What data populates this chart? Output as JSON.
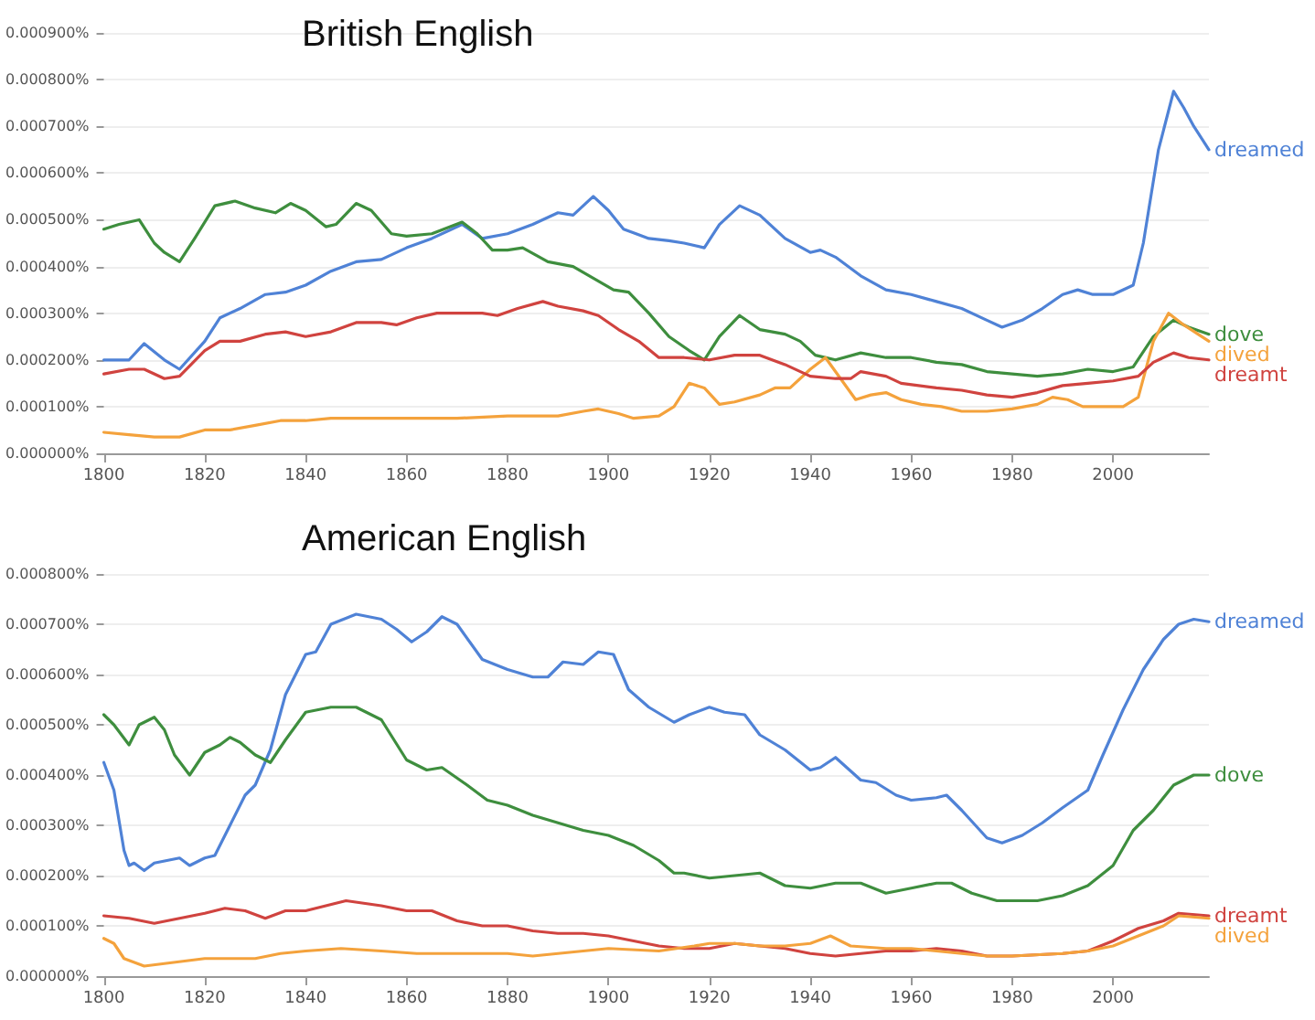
{
  "chart_data": [
    {
      "type": "line",
      "title": "British English",
      "xlim": [
        1800,
        2019
      ],
      "xticks": [
        1800,
        1820,
        1840,
        1860,
        1880,
        1900,
        1920,
        1940,
        1960,
        1980,
        2000
      ],
      "ylim": [
        0,
        0.0009
      ],
      "yticks": [
        {
          "value": 0,
          "label": "0.000000%"
        },
        {
          "value": 0.0001,
          "label": "0.000100%"
        },
        {
          "value": 0.0002,
          "label": "0.000200%"
        },
        {
          "value": 0.0003,
          "label": "0.000300%"
        },
        {
          "value": 0.0004,
          "label": "0.000400%"
        },
        {
          "value": 0.0005,
          "label": "0.000500%"
        },
        {
          "value": 0.0006,
          "label": "0.000600%"
        },
        {
          "value": 0.0007,
          "label": "0.000700%"
        },
        {
          "value": 0.0008,
          "label": "0.000800%"
        },
        {
          "value": 0.0009,
          "label": "0.000900%"
        }
      ],
      "grid": "y",
      "marker": "none",
      "series": [
        {
          "name": "dreamed",
          "color": "#4f82d6",
          "x": [
            1800,
            1805,
            1808,
            1812,
            1815,
            1820,
            1823,
            1827,
            1832,
            1836,
            1840,
            1845,
            1850,
            1855,
            1860,
            1865,
            1871,
            1875,
            1880,
            1885,
            1890,
            1893,
            1897,
            1900,
            1903,
            1908,
            1912,
            1915,
            1919,
            1922,
            1926,
            1930,
            1935,
            1940,
            1942,
            1945,
            1950,
            1955,
            1960,
            1965,
            1970,
            1975,
            1978,
            1982,
            1986,
            1990,
            1993,
            1996,
            2000,
            2004,
            2006,
            2009,
            2012,
            2014,
            2016,
            2019
          ],
          "values": [
            0.0002,
            0.0002,
            0.000235,
            0.0002,
            0.00018,
            0.00024,
            0.00029,
            0.00031,
            0.00034,
            0.000345,
            0.00036,
            0.00039,
            0.00041,
            0.000415,
            0.00044,
            0.00046,
            0.00049,
            0.00046,
            0.00047,
            0.00049,
            0.000515,
            0.00051,
            0.00055,
            0.00052,
            0.00048,
            0.00046,
            0.000455,
            0.00045,
            0.00044,
            0.00049,
            0.00053,
            0.00051,
            0.00046,
            0.00043,
            0.000435,
            0.00042,
            0.00038,
            0.00035,
            0.00034,
            0.000325,
            0.00031,
            0.000285,
            0.00027,
            0.000285,
            0.00031,
            0.00034,
            0.00035,
            0.00034,
            0.00034,
            0.00036,
            0.00045,
            0.00065,
            0.000775,
            0.00074,
            0.0007,
            0.00065
          ]
        },
        {
          "name": "dove",
          "color": "#3e8e3e",
          "x": [
            1800,
            1803,
            1807,
            1810,
            1812,
            1815,
            1818,
            1822,
            1826,
            1830,
            1834,
            1837,
            1840,
            1844,
            1846,
            1850,
            1853,
            1857,
            1860,
            1865,
            1871,
            1874,
            1877,
            1880,
            1883,
            1888,
            1893,
            1897,
            1901,
            1904,
            1908,
            1912,
            1916,
            1919,
            1922,
            1926,
            1930,
            1935,
            1938,
            1941,
            1945,
            1950,
            1955,
            1960,
            1965,
            1970,
            1975,
            1980,
            1985,
            1990,
            1995,
            2000,
            2004,
            2008,
            2012,
            2015,
            2019
          ],
          "values": [
            0.00048,
            0.00049,
            0.0005,
            0.00045,
            0.00043,
            0.00041,
            0.00046,
            0.00053,
            0.00054,
            0.000525,
            0.000515,
            0.000535,
            0.00052,
            0.000485,
            0.00049,
            0.000535,
            0.00052,
            0.00047,
            0.000465,
            0.00047,
            0.000495,
            0.00047,
            0.000435,
            0.000435,
            0.00044,
            0.00041,
            0.0004,
            0.000375,
            0.00035,
            0.000345,
            0.0003,
            0.00025,
            0.00022,
            0.0002,
            0.00025,
            0.000295,
            0.000265,
            0.000255,
            0.00024,
            0.00021,
            0.0002,
            0.000215,
            0.000205,
            0.000205,
            0.000195,
            0.00019,
            0.000175,
            0.00017,
            0.000165,
            0.00017,
            0.00018,
            0.000175,
            0.000185,
            0.00025,
            0.000285,
            0.00027,
            0.000255
          ]
        },
        {
          "name": "dived",
          "color": "#f4a23c",
          "x": [
            1800,
            1805,
            1810,
            1815,
            1820,
            1825,
            1830,
            1835,
            1840,
            1845,
            1850,
            1860,
            1870,
            1880,
            1890,
            1895,
            1898,
            1902,
            1905,
            1910,
            1913,
            1916,
            1919,
            1922,
            1925,
            1930,
            1933,
            1936,
            1940,
            1943,
            1946,
            1949,
            1952,
            1955,
            1958,
            1962,
            1966,
            1970,
            1975,
            1980,
            1985,
            1988,
            1991,
            1994,
            1998,
            2002,
            2005,
            2008,
            2011,
            2014,
            2019
          ],
          "values": [
            4.5e-05,
            4e-05,
            3.5e-05,
            3.5e-05,
            5e-05,
            5e-05,
            6e-05,
            7e-05,
            7e-05,
            7.5e-05,
            7.5e-05,
            7.5e-05,
            7.5e-05,
            8e-05,
            8e-05,
            9e-05,
            9.5e-05,
            8.5e-05,
            7.5e-05,
            8e-05,
            0.0001,
            0.00015,
            0.00014,
            0.000105,
            0.00011,
            0.000125,
            0.00014,
            0.00014,
            0.00018,
            0.000205,
            0.00016,
            0.000115,
            0.000125,
            0.00013,
            0.000115,
            0.000105,
            0.0001,
            9e-05,
            9e-05,
            9.5e-05,
            0.000105,
            0.00012,
            0.000115,
            0.0001,
            0.0001,
            0.0001,
            0.00012,
            0.00024,
            0.0003,
            0.000275,
            0.00024
          ]
        },
        {
          "name": "dreamt",
          "color": "#d0433f",
          "x": [
            1800,
            1805,
            1808,
            1812,
            1815,
            1820,
            1823,
            1827,
            1832,
            1836,
            1840,
            1845,
            1850,
            1855,
            1858,
            1862,
            1866,
            1870,
            1875,
            1878,
            1882,
            1887,
            1890,
            1895,
            1898,
            1902,
            1906,
            1910,
            1915,
            1920,
            1925,
            1930,
            1935,
            1940,
            1945,
            1948,
            1950,
            1955,
            1958,
            1965,
            1970,
            1975,
            1980,
            1985,
            1990,
            1995,
            2000,
            2005,
            2008,
            2012,
            2015,
            2019
          ],
          "values": [
            0.00017,
            0.00018,
            0.00018,
            0.00016,
            0.000165,
            0.00022,
            0.00024,
            0.00024,
            0.000255,
            0.00026,
            0.00025,
            0.00026,
            0.00028,
            0.00028,
            0.000275,
            0.00029,
            0.0003,
            0.0003,
            0.0003,
            0.000295,
            0.00031,
            0.000325,
            0.000315,
            0.000305,
            0.000295,
            0.000265,
            0.00024,
            0.000205,
            0.000205,
            0.0002,
            0.00021,
            0.00021,
            0.00019,
            0.000165,
            0.00016,
            0.00016,
            0.000175,
            0.000165,
            0.00015,
            0.00014,
            0.000135,
            0.000125,
            0.00012,
            0.00013,
            0.000145,
            0.00015,
            0.000155,
            0.000165,
            0.000195,
            0.000215,
            0.000205,
            0.0002
          ]
        }
      ]
    },
    {
      "type": "line",
      "title": "American English",
      "xlim": [
        1800,
        2019
      ],
      "xticks": [
        1800,
        1820,
        1840,
        1860,
        1880,
        1900,
        1920,
        1940,
        1960,
        1980,
        2000
      ],
      "ylim": [
        0,
        0.0008
      ],
      "yticks": [
        {
          "value": 0,
          "label": "0.000000%"
        },
        {
          "value": 0.0001,
          "label": "0.000100%"
        },
        {
          "value": 0.0002,
          "label": "0.000200%"
        },
        {
          "value": 0.0003,
          "label": "0.000300%"
        },
        {
          "value": 0.0004,
          "label": "0.000400%"
        },
        {
          "value": 0.0005,
          "label": "0.000500%"
        },
        {
          "value": 0.0006,
          "label": "0.000600%"
        },
        {
          "value": 0.0007,
          "label": "0.000700%"
        },
        {
          "value": 0.0008,
          "label": "0.000800%"
        }
      ],
      "grid": "y",
      "marker": "none",
      "series": [
        {
          "name": "dreamed",
          "color": "#4f82d6",
          "x": [
            1800,
            1802,
            1804,
            1805,
            1806,
            1808,
            1810,
            1815,
            1817,
            1820,
            1822,
            1825,
            1828,
            1830,
            1833,
            1836,
            1840,
            1842,
            1845,
            1850,
            1855,
            1858,
            1861,
            1864,
            1867,
            1870,
            1875,
            1880,
            1885,
            1888,
            1891,
            1895,
            1898,
            1901,
            1904,
            1908,
            1913,
            1916,
            1920,
            1923,
            1927,
            1930,
            1935,
            1940,
            1942,
            1945,
            1950,
            1953,
            1957,
            1960,
            1965,
            1967,
            1970,
            1975,
            1978,
            1982,
            1986,
            1990,
            1995,
            1998,
            2002,
            2006,
            2010,
            2013,
            2016,
            2019
          ],
          "values": [
            0.000425,
            0.00037,
            0.00025,
            0.00022,
            0.000225,
            0.00021,
            0.000225,
            0.000235,
            0.00022,
            0.000235,
            0.00024,
            0.0003,
            0.00036,
            0.00038,
            0.00045,
            0.00056,
            0.00064,
            0.000645,
            0.0007,
            0.00072,
            0.00071,
            0.00069,
            0.000665,
            0.000685,
            0.000715,
            0.0007,
            0.00063,
            0.00061,
            0.000595,
            0.000595,
            0.000625,
            0.00062,
            0.000645,
            0.00064,
            0.00057,
            0.000535,
            0.000505,
            0.00052,
            0.000535,
            0.000525,
            0.00052,
            0.00048,
            0.00045,
            0.00041,
            0.000415,
            0.000435,
            0.00039,
            0.000385,
            0.00036,
            0.00035,
            0.000355,
            0.00036,
            0.00033,
            0.000275,
            0.000265,
            0.00028,
            0.000305,
            0.000335,
            0.00037,
            0.00044,
            0.00053,
            0.00061,
            0.00067,
            0.0007,
            0.00071,
            0.000705
          ]
        },
        {
          "name": "dove",
          "color": "#3e8e3e",
          "x": [
            1800,
            1802,
            1805,
            1807,
            1810,
            1812,
            1814,
            1817,
            1820,
            1823,
            1825,
            1827,
            1830,
            1833,
            1836,
            1840,
            1845,
            1850,
            1855,
            1860,
            1864,
            1867,
            1872,
            1876,
            1880,
            1885,
            1890,
            1895,
            1900,
            1905,
            1910,
            1913,
            1915,
            1920,
            1925,
            1930,
            1935,
            1940,
            1945,
            1950,
            1955,
            1960,
            1965,
            1968,
            1972,
            1977,
            1985,
            1990,
            1995,
            2000,
            2004,
            2008,
            2012,
            2016,
            2019
          ],
          "values": [
            0.00052,
            0.0005,
            0.00046,
            0.0005,
            0.000515,
            0.00049,
            0.00044,
            0.0004,
            0.000445,
            0.00046,
            0.000475,
            0.000465,
            0.00044,
            0.000425,
            0.00047,
            0.000525,
            0.000535,
            0.000535,
            0.00051,
            0.00043,
            0.00041,
            0.000415,
            0.00038,
            0.00035,
            0.00034,
            0.00032,
            0.000305,
            0.00029,
            0.00028,
            0.00026,
            0.00023,
            0.000205,
            0.000205,
            0.000195,
            0.0002,
            0.000205,
            0.00018,
            0.000175,
            0.000185,
            0.000185,
            0.000165,
            0.000175,
            0.000185,
            0.000185,
            0.000165,
            0.00015,
            0.00015,
            0.00016,
            0.00018,
            0.00022,
            0.00029,
            0.00033,
            0.00038,
            0.0004,
            0.0004
          ]
        },
        {
          "name": "dreamt",
          "color": "#d0433f",
          "x": [
            1800,
            1805,
            1810,
            1815,
            1820,
            1824,
            1828,
            1832,
            1836,
            1840,
            1848,
            1855,
            1860,
            1865,
            1870,
            1875,
            1880,
            1885,
            1890,
            1895,
            1900,
            1905,
            1910,
            1915,
            1920,
            1925,
            1930,
            1935,
            1940,
            1945,
            1950,
            1955,
            1960,
            1965,
            1970,
            1975,
            1980,
            1990,
            1995,
            2000,
            2005,
            2010,
            2013,
            2019
          ],
          "values": [
            0.00012,
            0.000115,
            0.000105,
            0.000115,
            0.000125,
            0.000135,
            0.00013,
            0.000115,
            0.00013,
            0.00013,
            0.00015,
            0.00014,
            0.00013,
            0.00013,
            0.00011,
            0.0001,
            0.0001,
            9e-05,
            8.5e-05,
            8.5e-05,
            8e-05,
            7e-05,
            6e-05,
            5.5e-05,
            5.5e-05,
            6.5e-05,
            6e-05,
            5.5e-05,
            4.5e-05,
            4e-05,
            4.5e-05,
            5e-05,
            5e-05,
            5.5e-05,
            5e-05,
            4e-05,
            4e-05,
            4.5e-05,
            5e-05,
            7e-05,
            9.5e-05,
            0.00011,
            0.000125,
            0.00012
          ]
        },
        {
          "name": "dived",
          "color": "#f4a23c",
          "x": [
            1800,
            1802,
            1804,
            1808,
            1812,
            1816,
            1820,
            1830,
            1835,
            1840,
            1847,
            1855,
            1862,
            1870,
            1880,
            1885,
            1890,
            1900,
            1910,
            1917,
            1920,
            1925,
            1930,
            1935,
            1940,
            1944,
            1948,
            1955,
            1960,
            1965,
            1970,
            1975,
            1980,
            1990,
            1995,
            2000,
            2005,
            2010,
            2013,
            2019
          ],
          "values": [
            7.5e-05,
            6.5e-05,
            3.5e-05,
            2e-05,
            2.5e-05,
            3e-05,
            3.5e-05,
            3.5e-05,
            4.5e-05,
            5e-05,
            5.5e-05,
            5e-05,
            4.5e-05,
            4.5e-05,
            4.5e-05,
            4e-05,
            4.5e-05,
            5.5e-05,
            5e-05,
            6e-05,
            6.5e-05,
            6.5e-05,
            6e-05,
            6e-05,
            6.5e-05,
            8e-05,
            6e-05,
            5.5e-05,
            5.5e-05,
            5e-05,
            4.5e-05,
            4e-05,
            4e-05,
            4.5e-05,
            5e-05,
            6e-05,
            8e-05,
            0.0001,
            0.00012,
            0.000115
          ]
        }
      ]
    }
  ]
}
